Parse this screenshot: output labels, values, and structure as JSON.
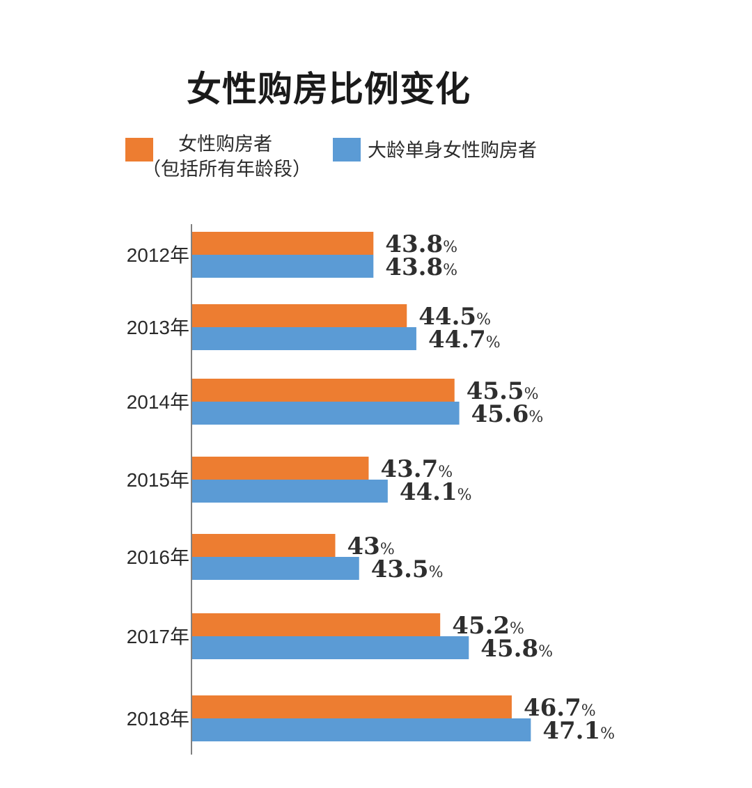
{
  "chart_data": {
    "type": "bar",
    "orientation": "horizontal",
    "title": "女性购房比例变化",
    "categories": [
      "2012年",
      "2013年",
      "2014年",
      "2015年",
      "2016年",
      "2017年",
      "2018年"
    ],
    "series": [
      {
        "name": "女性购房者",
        "name_note": "（包括所有年龄段）",
        "color": "#ED7D31",
        "values": [
          43.8,
          44.5,
          45.5,
          43.7,
          43,
          45.2,
          46.7
        ],
        "labels": [
          "43.8",
          "44.5",
          "45.5",
          "43.7",
          "43",
          "45.2",
          "46.7"
        ]
      },
      {
        "name": "大龄单身女性购房者",
        "color": "#5B9BD5",
        "values": [
          43.8,
          44.7,
          45.6,
          44.1,
          43.5,
          45.8,
          47.1
        ],
        "labels": [
          "43.8",
          "44.7",
          "45.6",
          "44.1",
          "43.5",
          "45.8",
          "47.1"
        ]
      }
    ],
    "value_suffix": "%",
    "xlim": [
      40,
      48
    ],
    "xlabel": "",
    "ylabel": "",
    "grid": false,
    "legend_position": "top"
  }
}
